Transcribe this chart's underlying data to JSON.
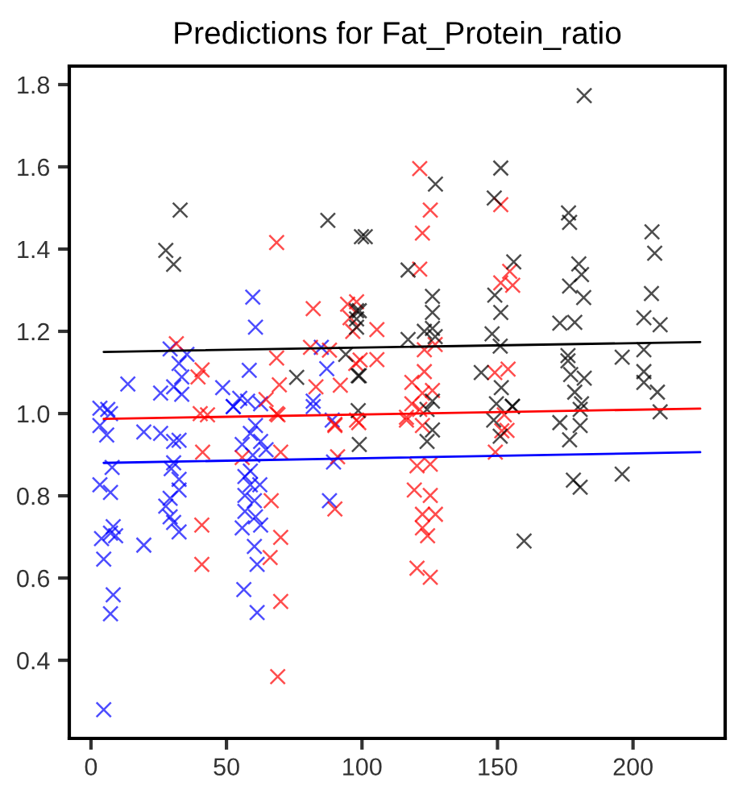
{
  "chart_data": {
    "type": "scatter",
    "title": "Predictions for Fat_Protein_ratio",
    "grid": false,
    "legend": false,
    "xlim": [
      -8,
      234
    ],
    "ylim": [
      0.21,
      1.845
    ],
    "xticks": [
      0,
      50,
      100,
      150,
      200
    ],
    "yticks": [
      0.4,
      0.6,
      0.8,
      {
        "value": 1.0,
        "label": "1.0"
      },
      1.2,
      1.4,
      1.6,
      1.8
    ],
    "series": [
      {
        "marker": "cross",
        "color": "#0000ff",
        "x": [
          59.7,
          60.7,
          29.2,
          35.4,
          32.5,
          33.5,
          30.5,
          33.5,
          25.7,
          13.6,
          85,
          87,
          58.4,
          48.6,
          82,
          52.5,
          54.9,
          57.8,
          62.6,
          3.3,
          6.2,
          89,
          3.3,
          5.8,
          7.2,
          19.5,
          25.7,
          7.8,
          3.3,
          7.2,
          8.2,
          3.9,
          7.2,
          9.1,
          4.7,
          8.2,
          7.2,
          4.7,
          19.5,
          30.5,
          32.5,
          30.5,
          29.6,
          32.5,
          32.5,
          29.2,
          27.6,
          29.2,
          30.5,
          32.5,
          55.8,
          58.8,
          60.7,
          62.6,
          59.7,
          56.8,
          58.8,
          56.8,
          60.3,
          56.8,
          60.7,
          55.8,
          62.6,
          60.3,
          61.3,
          56.4,
          61.3,
          62.3,
          58.8,
          64.6,
          89.5,
          88,
          52.5,
          82
        ],
        "values": [
          1.283,
          1.21,
          1.157,
          1.144,
          1.122,
          1.089,
          1.065,
          1.047,
          1.05,
          1.072,
          1.161,
          1.109,
          1.105,
          1.063,
          1.03,
          1.017,
          1.037,
          1.03,
          1.024,
          1.013,
          1.01,
          0.984,
          0.971,
          0.948,
          1.0,
          0.955,
          0.952,
          0.869,
          0.827,
          0.808,
          0.725,
          0.696,
          0.709,
          0.703,
          0.646,
          0.559,
          0.513,
          0.28,
          0.68,
          0.932,
          0.935,
          0.88,
          0.866,
          0.84,
          0.814,
          0.794,
          0.775,
          0.749,
          0.735,
          0.712,
          0.925,
          0.952,
          0.971,
          0.932,
          0.899,
          0.847,
          0.827,
          0.801,
          0.788,
          0.762,
          0.749,
          0.722,
          0.729,
          0.677,
          0.633,
          0.572,
          0.516,
          0.827,
          0.86,
          0.912,
          0.882,
          0.788,
          1.017,
          1.017
        ]
      },
      {
        "marker": "cross",
        "color": "#ff0000",
        "x": [
          68.5,
          82,
          31.5,
          41,
          39.5,
          68.5,
          69.5,
          83,
          81,
          88,
          94.7,
          95.6,
          96.6,
          92,
          97.7,
          40.3,
          43,
          64.6,
          69,
          90,
          121.3,
          125.2,
          122.3,
          121.3,
          151.2,
          154.5,
          151.2,
          155.6,
          105.5,
          105.5,
          98,
          99.3,
          123,
          127,
          123,
          118.4,
          122.3,
          126,
          118.4,
          121.3,
          116.4,
          149,
          153.9,
          152.5,
          153.5,
          41.2,
          40.9,
          40.9,
          66.5,
          70,
          66.1,
          70,
          70,
          68.9,
          55.8,
          90,
          91,
          90,
          98,
          68.5,
          120.3,
          125.2,
          119.3,
          125.2,
          122.3,
          127.1,
          122.3,
          124.2,
          120.3,
          125.2,
          149.2,
          116.4,
          122.3,
          151.6,
          98.8
        ],
        "values": [
          1.416,
          1.255,
          1.17,
          1.106,
          1.089,
          1.135,
          1.07,
          1.065,
          1.161,
          1.154,
          1.266,
          1.233,
          1.2,
          1.069,
          1.122,
          1.0,
          0.997,
          1.034,
          0.997,
          0.974,
          1.596,
          1.495,
          1.439,
          1.351,
          1.508,
          1.346,
          1.318,
          1.312,
          1.204,
          1.131,
          1.272,
          1.13,
          1.155,
          1.168,
          1.102,
          1.076,
          1.05,
          1.056,
          1.024,
          1.01,
          0.991,
          1.1,
          1.108,
          0.997,
          0.959,
          0.906,
          0.729,
          0.633,
          0.788,
          0.906,
          0.65,
          0.699,
          0.543,
          0.36,
          0.893,
          0.768,
          0.895,
          0.971,
          0.984,
          1.0,
          0.873,
          0.877,
          0.814,
          0.801,
          0.755,
          0.755,
          0.722,
          0.703,
          0.624,
          0.602,
          0.906,
          0.984,
          0.971,
          0.958,
          0.978
        ]
      },
      {
        "marker": "cross",
        "color": "#000000",
        "x": [
          32.9,
          27.6,
          30.5,
          87.4,
          99.8,
          94,
          75.9,
          98.6,
          98.6,
          98,
          98,
          98,
          182,
          151.2,
          127.1,
          148.8,
          101.2,
          117,
          156,
          176.2,
          176.6,
          180,
          181,
          207,
          208,
          206.8,
          204,
          210,
          149,
          151.2,
          148,
          151,
          144,
          151.4,
          149.6,
          155.5,
          126,
          126,
          126,
          123,
          117,
          127,
          176.6,
          181.8,
          173,
          178.5,
          176,
          176,
          177,
          182,
          178.5,
          181,
          196,
          204,
          204,
          204,
          209,
          210,
          126,
          124,
          99,
          99,
          99,
          173,
          180.5,
          176.6,
          178,
          180.5,
          196,
          159.8,
          124,
          126,
          151,
          148.6,
          155.5,
          180.5
        ],
        "values": [
          1.495,
          1.397,
          1.363,
          1.47,
          1.43,
          1.144,
          1.088,
          1.092,
          1.007,
          1.25,
          1.23,
          1.21,
          1.773,
          1.597,
          1.558,
          1.524,
          1.43,
          1.349,
          1.369,
          1.488,
          1.465,
          1.364,
          1.338,
          1.442,
          1.39,
          1.292,
          1.233,
          1.216,
          1.288,
          1.246,
          1.194,
          1.164,
          1.1,
          1.063,
          1.024,
          1.018,
          1.285,
          1.246,
          1.207,
          1.2,
          1.18,
          1.187,
          1.31,
          1.282,
          1.22,
          1.222,
          1.141,
          1.128,
          1.095,
          1.086,
          1.052,
          1.024,
          1.137,
          1.155,
          1.102,
          1.076,
          1.052,
          1.004,
          1.03,
          1.01,
          1.092,
          1.25,
          0.925,
          0.978,
          0.971,
          0.936,
          0.838,
          0.821,
          0.853,
          0.69,
          0.932,
          0.96,
          0.945,
          0.984,
          1.017,
          1.01
        ]
      },
      {
        "type": "line",
        "color": "#000000",
        "x": [
          4.7,
          224.8
        ],
        "values": [
          1.15,
          1.174
        ]
      },
      {
        "type": "line",
        "color": "#ff0000",
        "x": [
          4.7,
          224.8
        ],
        "values": [
          0.987,
          1.012
        ]
      },
      {
        "type": "line",
        "color": "#0000ff",
        "x": [
          4.7,
          224.8
        ],
        "values": [
          0.88,
          0.906
        ]
      }
    ]
  }
}
